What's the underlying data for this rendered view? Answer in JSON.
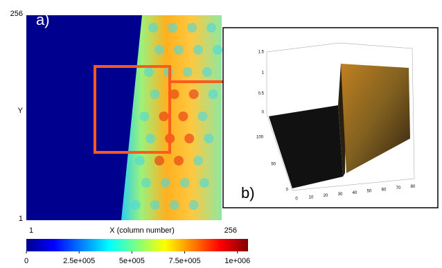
{
  "panel_a": {
    "label": "a)",
    "y_axis": {
      "title": "Y",
      "top": "256",
      "bottom": "1"
    },
    "x_axis": {
      "title": "X (column number)",
      "left": "1",
      "right": "256"
    },
    "colorbar": {
      "lim": [
        0,
        1050000
      ],
      "ticks": [
        {
          "value": 0,
          "label": "0"
        },
        {
          "value": 250000,
          "label": "2.5e+005"
        },
        {
          "value": 500000,
          "label": "5e+005"
        },
        {
          "value": 750000,
          "label": "7.5e+005"
        },
        {
          "value": 1000000,
          "label": "1e+006"
        }
      ]
    }
  },
  "panel_b": {
    "label": "b)",
    "z_ticks": [
      "1.5",
      "1",
      "0.5",
      "0"
    ],
    "y_ticks": [
      "100",
      "50",
      "0"
    ],
    "x_ticks": [
      "0",
      "10",
      "20",
      "30",
      "40",
      "50",
      "60",
      "70",
      "80"
    ]
  }
}
